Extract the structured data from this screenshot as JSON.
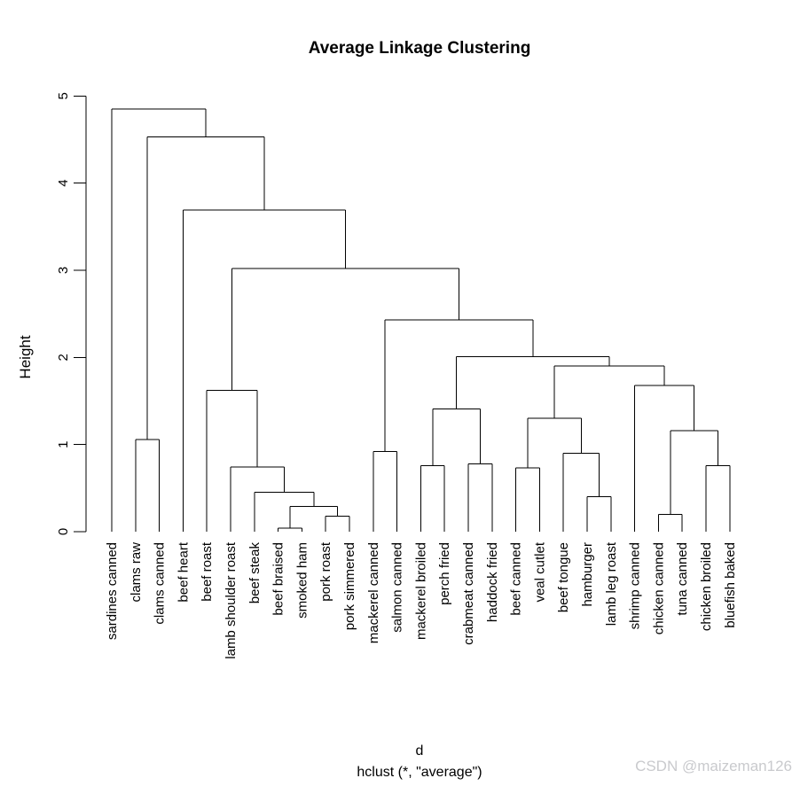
{
  "page": {
    "watermark": "CSDN @maizeman126",
    "watermark_color": "#c9cacd"
  },
  "chart_data": {
    "type": "dendrogram",
    "title": "Average Linkage Clustering",
    "ylabel": "Height",
    "xlabel_line1": "d",
    "xlabel_line2": "hclust (*, \"average\")",
    "ylim": [
      0,
      5
    ],
    "y_ticks": [
      0,
      1,
      2,
      3,
      4,
      5
    ],
    "grid": false,
    "line_color": "#000000",
    "leaf_order": [
      "sardines canned",
      "clams raw",
      "clams canned",
      "beef heart",
      "beef roast",
      "lamb shoulder roast",
      "beef steak",
      "beef braised",
      "smoked ham",
      "pork roast",
      "pork simmered",
      "mackerel canned",
      "salmon canned",
      "mackerel broiled",
      "perch fried",
      "crabmeat canned",
      "haddock fried",
      "beef canned",
      "veal cutlet",
      "beef tongue",
      "hamburger",
      "lamb leg roast",
      "shrimp canned",
      "chicken canned",
      "tuna canned",
      "chicken broiled",
      "bluefish baked"
    ],
    "tree": {
      "h": 4.85,
      "c": [
        "sardines canned",
        {
          "h": 4.53,
          "c": [
            {
              "h": 1.06,
              "c": [
                "clams raw",
                "clams canned"
              ]
            },
            {
              "h": 3.69,
              "c": [
                "beef heart",
                {
                  "h": 3.02,
                  "c": [
                    {
                      "h": 1.62,
                      "c": [
                        "beef roast",
                        {
                          "h": 0.74,
                          "c": [
                            "lamb shoulder roast",
                            {
                              "h": 0.45,
                              "c": [
                                "beef steak",
                                {
                                  "h": 0.29,
                                  "c": [
                                    {
                                      "h": 0.04,
                                      "c": [
                                        "beef braised",
                                        "smoked ham"
                                      ]
                                    },
                                    {
                                      "h": 0.18,
                                      "c": [
                                        "pork roast",
                                        "pork simmered"
                                      ]
                                    }
                                  ]
                                }
                              ]
                            }
                          ]
                        }
                      ]
                    },
                    {
                      "h": 2.43,
                      "c": [
                        {
                          "h": 0.92,
                          "c": [
                            "mackerel canned",
                            "salmon canned"
                          ]
                        },
                        {
                          "h": 2.01,
                          "c": [
                            {
                              "h": 1.41,
                              "c": [
                                {
                                  "h": 0.76,
                                  "c": [
                                    "mackerel broiled",
                                    "perch fried"
                                  ]
                                },
                                {
                                  "h": 0.78,
                                  "c": [
                                    "crabmeat canned",
                                    "haddock fried"
                                  ]
                                }
                              ]
                            },
                            {
                              "h": 1.9,
                              "c": [
                                {
                                  "h": 1.3,
                                  "c": [
                                    {
                                      "h": 0.73,
                                      "c": [
                                        "beef canned",
                                        "veal cutlet"
                                      ]
                                    },
                                    {
                                      "h": 0.9,
                                      "c": [
                                        "beef tongue",
                                        {
                                          "h": 0.4,
                                          "c": [
                                            "hamburger",
                                            "lamb leg roast"
                                          ]
                                        }
                                      ]
                                    }
                                  ]
                                },
                                {
                                  "h": 1.68,
                                  "c": [
                                    "shrimp canned",
                                    {
                                      "h": 1.16,
                                      "c": [
                                        {
                                          "h": 0.2,
                                          "c": [
                                            "chicken canned",
                                            "tuna canned"
                                          ]
                                        },
                                        {
                                          "h": 0.76,
                                          "c": [
                                            "chicken broiled",
                                            "bluefish baked"
                                          ]
                                        }
                                      ]
                                    }
                                  ]
                                }
                              ]
                            }
                          ]
                        }
                      ]
                    }
                  ]
                }
              ]
            }
          ]
        }
      ]
    }
  }
}
